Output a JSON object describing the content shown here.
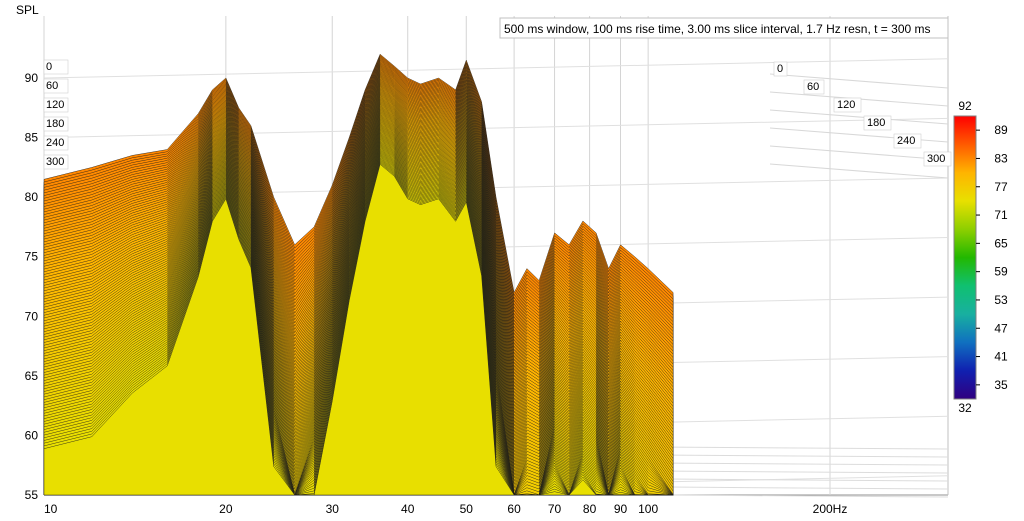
{
  "chart_data": {
    "type": "waterfall",
    "title": "500 ms window, 100 ms rise time, 3.00 ms slice interval, 1.7 Hz resn, t = 300 ms",
    "ylabel": "SPL",
    "xlabel_unit": "Hz",
    "x_scale": "log",
    "xlim": [
      10,
      200
    ],
    "ylim": [
      55,
      95
    ],
    "x_ticks": [
      {
        "value": 10,
        "label": "10"
      },
      {
        "value": 20,
        "label": "20"
      },
      {
        "value": 30,
        "label": "30"
      },
      {
        "value": 40,
        "label": "40"
      },
      {
        "value": 50,
        "label": "50"
      },
      {
        "value": 60,
        "label": "60"
      },
      {
        "value": 70,
        "label": "70"
      },
      {
        "value": 80,
        "label": "80"
      },
      {
        "value": 90,
        "label": "90"
      },
      {
        "value": 100,
        "label": "100"
      },
      {
        "value": 200,
        "label": "200Hz"
      }
    ],
    "y_ticks": [
      "55",
      "60",
      "65",
      "70",
      "75",
      "80",
      "85",
      "90"
    ],
    "time_ticks_left": [
      "0",
      "60",
      "120",
      "180",
      "240",
      "300"
    ],
    "time_ticks_right": [
      "0",
      "60",
      "120",
      "180",
      "240",
      "300"
    ],
    "time_unit": "ms",
    "colorbar": {
      "min": "32",
      "max": "92",
      "ticks": [
        "89",
        "83",
        "77",
        "71",
        "65",
        "59",
        "53",
        "47",
        "41",
        "35"
      ]
    },
    "spectrum": {
      "freq": [
        10,
        12,
        14,
        16,
        18,
        19,
        20,
        21,
        22,
        24,
        26,
        28,
        30,
        32,
        34,
        36,
        38,
        40,
        42,
        45,
        48,
        50,
        53,
        56,
        60,
        63,
        66,
        70,
        74,
        78,
        82,
        86,
        90,
        95,
        100,
        110
      ],
      "spl_first_slice": [
        81.5,
        82.5,
        83.5,
        84,
        87,
        89,
        90,
        87.5,
        86,
        80,
        76,
        77.5,
        81,
        85,
        89,
        92,
        91,
        90,
        89.5,
        90,
        89,
        91.5,
        88,
        80,
        72,
        74,
        73,
        77,
        76,
        78,
        77,
        74,
        76,
        75,
        74,
        72
      ],
      "decay_per_slice_dB": [
        0.25,
        0.25,
        0.22,
        0.2,
        0.15,
        0.12,
        0.11,
        0.12,
        0.13,
        0.25,
        0.3,
        0.25,
        0.2,
        0.15,
        0.12,
        0.1,
        0.1,
        0.11,
        0.11,
        0.11,
        0.12,
        0.13,
        0.16,
        0.25,
        0.3,
        0.28,
        0.27,
        0.24,
        0.26,
        0.24,
        0.25,
        0.28,
        0.25,
        0.27,
        0.28,
        0.3
      ],
      "slice_count": 100,
      "slice_interval_ms": 3
    }
  }
}
